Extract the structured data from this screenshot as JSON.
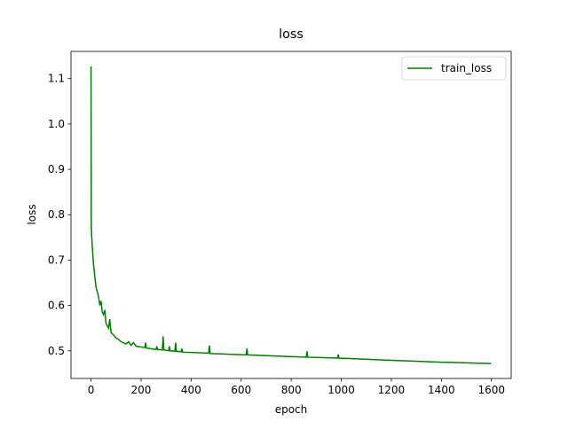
{
  "chart_data": {
    "type": "line",
    "title": "loss",
    "x_label": "epoch",
    "y_label": "loss",
    "x": [
      0,
      1,
      2,
      5,
      10,
      20,
      25,
      30,
      35,
      40,
      45,
      50,
      55,
      60,
      70,
      75,
      80,
      90,
      100,
      110,
      120,
      140,
      150,
      160,
      170,
      180,
      215,
      218,
      221,
      260,
      263,
      266,
      285,
      288,
      291,
      310,
      313,
      316,
      335,
      338,
      341,
      360,
      363,
      366,
      470,
      473,
      476,
      620,
      623,
      626,
      860,
      863,
      866,
      985,
      988,
      991,
      1200,
      1400,
      1599
    ],
    "series": [
      {
        "name": "train_loss",
        "color": "#008000",
        "values": [
          1.127,
          0.78,
          0.76,
          0.73,
          0.69,
          0.64,
          0.63,
          0.62,
          0.6,
          0.61,
          0.585,
          0.58,
          0.59,
          0.56,
          0.55,
          0.57,
          0.54,
          0.535,
          0.528,
          0.525,
          0.52,
          0.515,
          0.52,
          0.512,
          0.518,
          0.51,
          0.507,
          0.518,
          0.506,
          0.503,
          0.51,
          0.503,
          0.502,
          0.532,
          0.502,
          0.5,
          0.51,
          0.5,
          0.499,
          0.518,
          0.499,
          0.498,
          0.505,
          0.497,
          0.495,
          0.512,
          0.494,
          0.491,
          0.505,
          0.491,
          0.486,
          0.499,
          0.486,
          0.484,
          0.492,
          0.484,
          0.479,
          0.475,
          0.472
        ]
      }
    ],
    "xlim": [
      -80,
      1679
    ],
    "ylim": [
      0.439,
      1.16
    ],
    "xticks": [
      0,
      200,
      400,
      600,
      800,
      1000,
      1200,
      1400,
      1600
    ],
    "yticks": [
      0.5,
      0.6,
      0.7,
      0.8,
      0.9,
      {
        "value": 1.0,
        "label": "1.0"
      },
      1.1
    ],
    "legend": "upper right"
  }
}
